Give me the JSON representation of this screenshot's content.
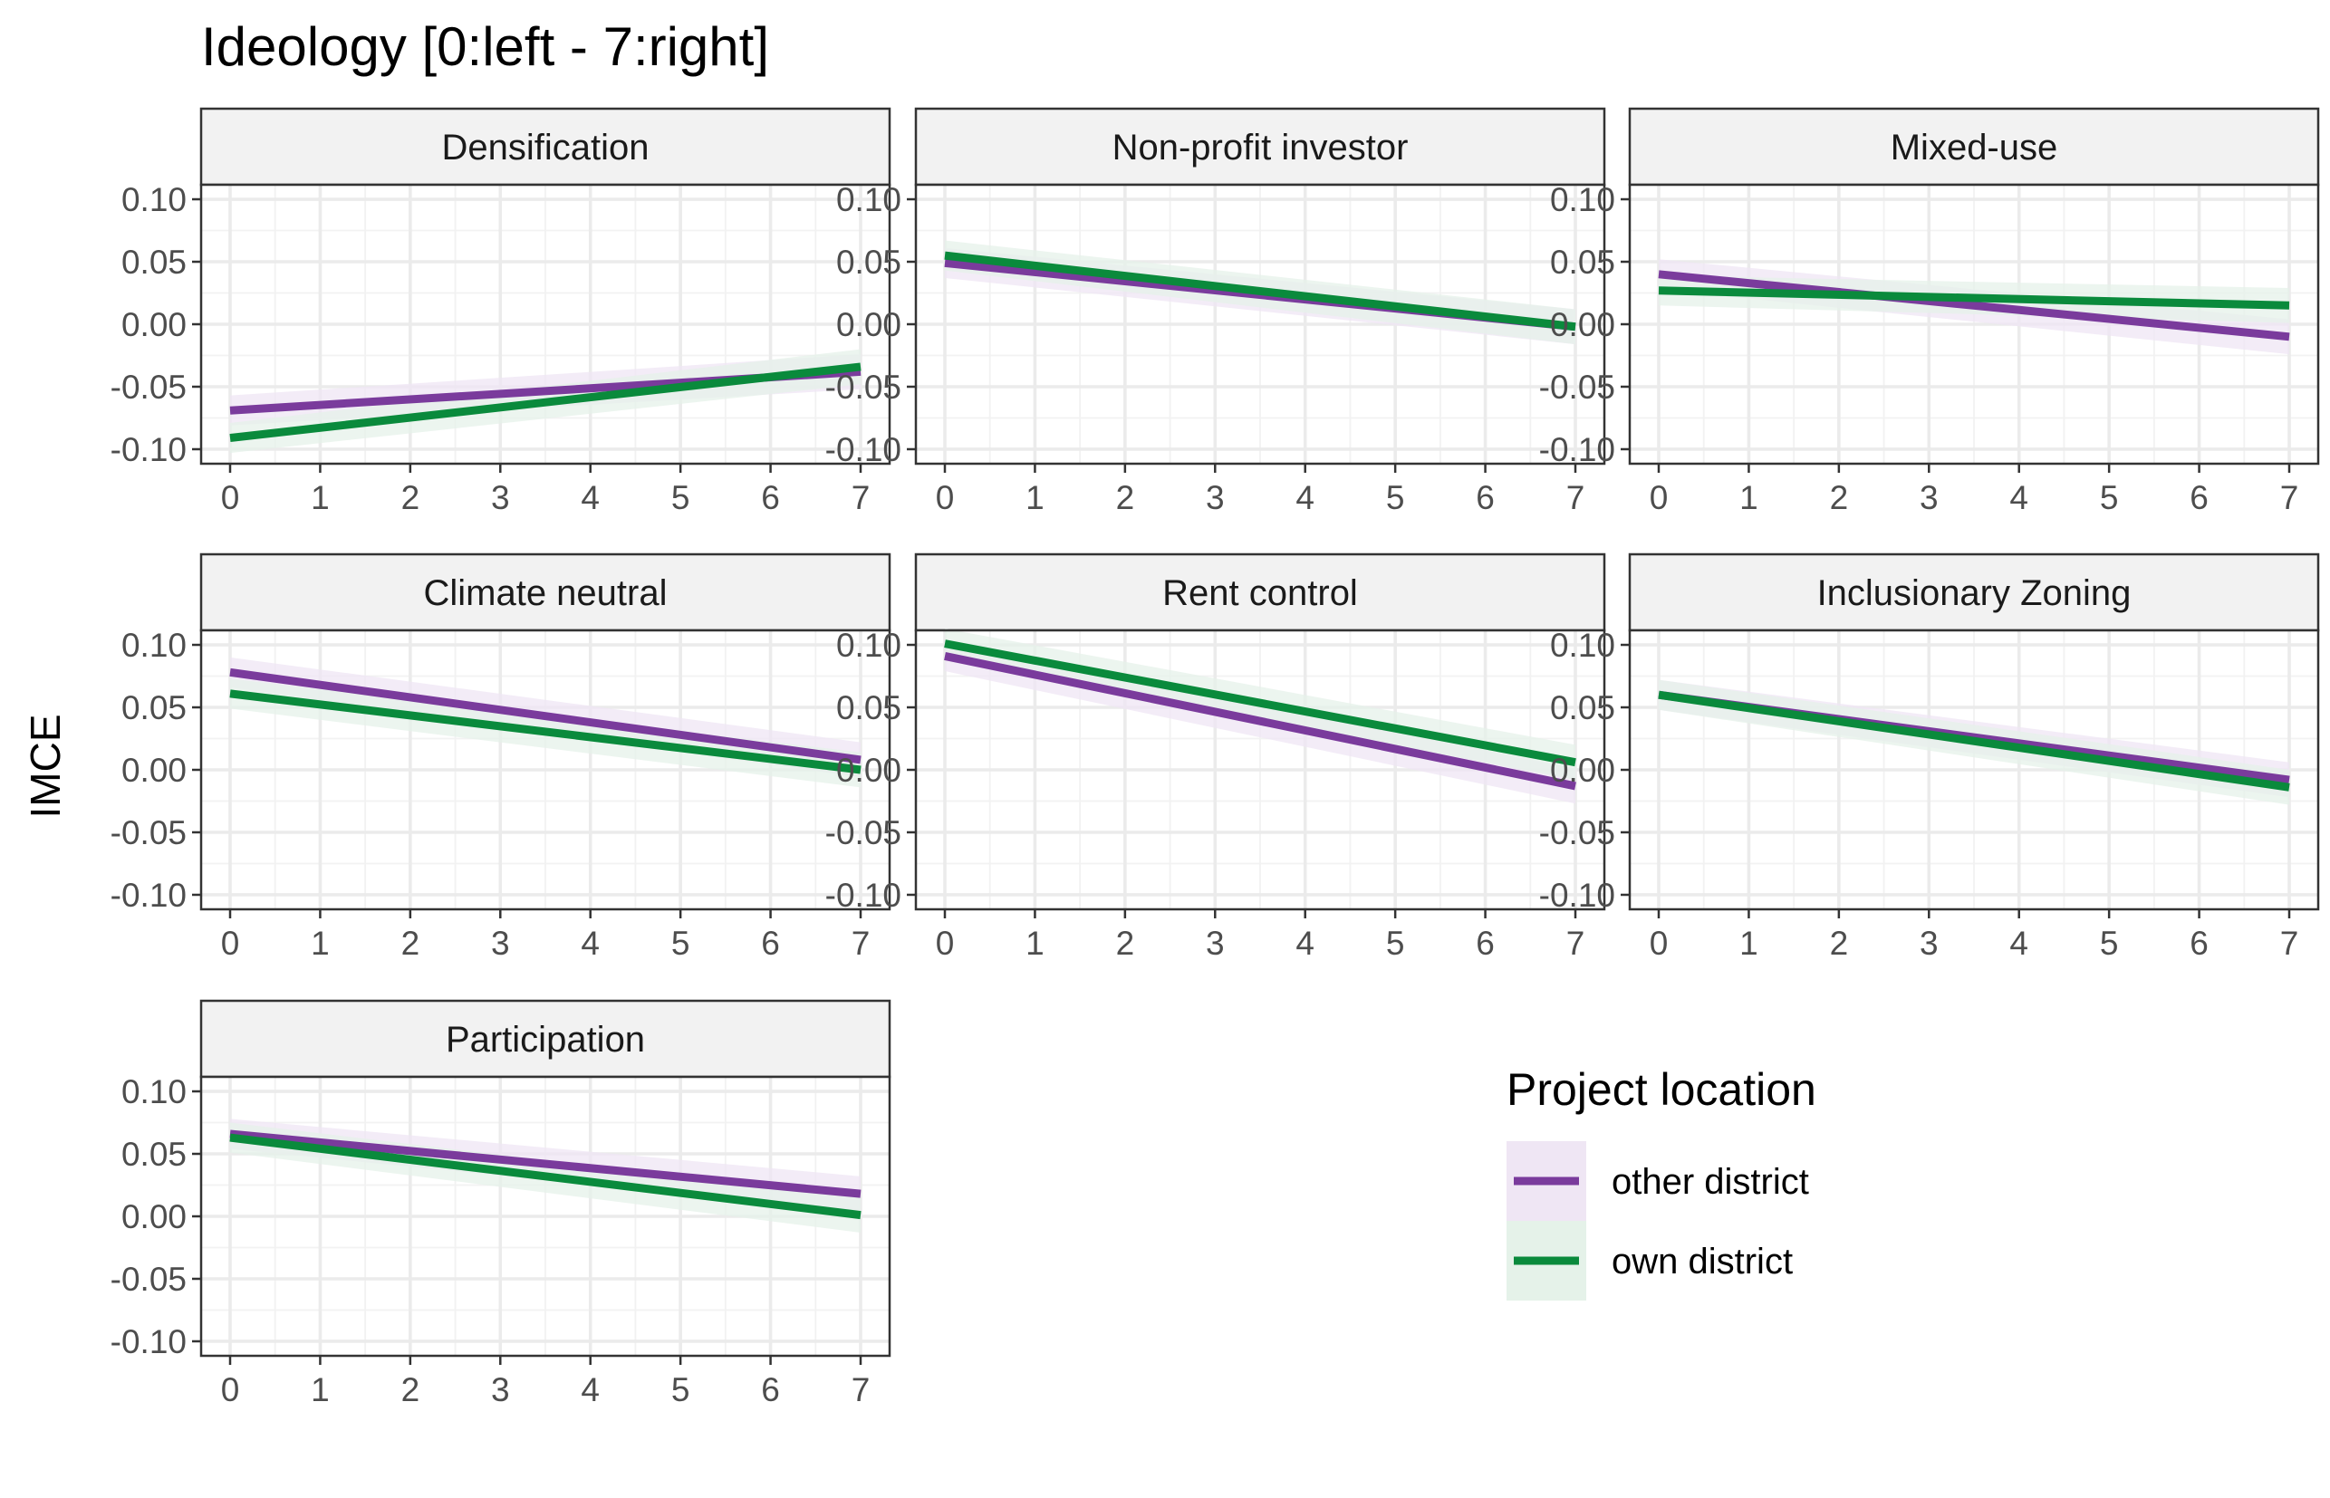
{
  "chart_data": {
    "type": "line",
    "title": "Ideology [0:left - 7:right]",
    "ylabel": "IMCE",
    "xlim": [
      0,
      7
    ],
    "ylim": [
      -0.1,
      0.1
    ],
    "x_ticks": [
      0,
      1,
      2,
      3,
      4,
      5,
      6,
      7
    ],
    "y_ticks": [
      0.1,
      0.05,
      0.0,
      -0.05,
      -0.1
    ],
    "y_tick_labels": [
      "0.10",
      "0.05",
      "0.00",
      "-0.05",
      "-0.10"
    ],
    "grid": true,
    "legend": {
      "title": "Project location",
      "position": "right",
      "entries": [
        {
          "name": "other district",
          "color": "#7a3b9c",
          "fill": "#efe6f4"
        },
        {
          "name": "own district",
          "color": "#0a8a3c",
          "fill": "#e5f2e9"
        }
      ]
    },
    "panels": [
      {
        "title": "Densification",
        "series": [
          {
            "name": "other district",
            "x": [
              0,
              7
            ],
            "y": [
              -0.069,
              -0.038
            ],
            "ci_lower": [
              -0.081,
              -0.052
            ],
            "ci_upper": [
              -0.057,
              -0.024
            ]
          },
          {
            "name": "own district",
            "x": [
              0,
              7
            ],
            "y": [
              -0.091,
              -0.034
            ],
            "ci_lower": [
              -0.103,
              -0.048
            ],
            "ci_upper": [
              -0.079,
              -0.02
            ]
          }
        ]
      },
      {
        "title": "Non-profit investor",
        "series": [
          {
            "name": "other district",
            "x": [
              0,
              7
            ],
            "y": [
              0.049,
              -0.002
            ],
            "ci_lower": [
              0.037,
              -0.016
            ],
            "ci_upper": [
              0.061,
              0.012
            ]
          },
          {
            "name": "own district",
            "x": [
              0,
              7
            ],
            "y": [
              0.055,
              -0.002
            ],
            "ci_lower": [
              0.043,
              -0.016
            ],
            "ci_upper": [
              0.067,
              0.012
            ]
          }
        ]
      },
      {
        "title": "Mixed-use",
        "series": [
          {
            "name": "other district",
            "x": [
              0,
              7
            ],
            "y": [
              0.04,
              -0.01
            ],
            "ci_lower": [
              0.028,
              -0.024
            ],
            "ci_upper": [
              0.052,
              0.004
            ]
          },
          {
            "name": "own district",
            "x": [
              0,
              7
            ],
            "y": [
              0.027,
              0.015
            ],
            "ci_lower": [
              0.015,
              0.001
            ],
            "ci_upper": [
              0.039,
              0.029
            ]
          }
        ]
      },
      {
        "title": "Climate neutral",
        "series": [
          {
            "name": "other district",
            "x": [
              0,
              7
            ],
            "y": [
              0.078,
              0.008
            ],
            "ci_lower": [
              0.066,
              -0.006
            ],
            "ci_upper": [
              0.09,
              0.022
            ]
          },
          {
            "name": "own district",
            "x": [
              0,
              7
            ],
            "y": [
              0.061,
              0.0
            ],
            "ci_lower": [
              0.049,
              -0.014
            ],
            "ci_upper": [
              0.073,
              0.014
            ]
          }
        ]
      },
      {
        "title": "Rent control",
        "series": [
          {
            "name": "other district",
            "x": [
              0,
              7
            ],
            "y": [
              0.091,
              -0.013
            ],
            "ci_lower": [
              0.079,
              -0.027
            ],
            "ci_upper": [
              0.103,
              0.001
            ]
          },
          {
            "name": "own district",
            "x": [
              0,
              7
            ],
            "y": [
              0.101,
              0.006
            ],
            "ci_lower": [
              0.089,
              -0.008
            ],
            "ci_upper": [
              0.113,
              0.02
            ]
          }
        ]
      },
      {
        "title": "Inclusionary Zoning",
        "series": [
          {
            "name": "other district",
            "x": [
              0,
              7
            ],
            "y": [
              0.06,
              -0.008
            ],
            "ci_lower": [
              0.048,
              -0.022
            ],
            "ci_upper": [
              0.072,
              0.006
            ]
          },
          {
            "name": "own district",
            "x": [
              0,
              7
            ],
            "y": [
              0.06,
              -0.014
            ],
            "ci_lower": [
              0.048,
              -0.028
            ],
            "ci_upper": [
              0.072,
              0.0
            ]
          }
        ]
      },
      {
        "title": "Participation",
        "series": [
          {
            "name": "other district",
            "x": [
              0,
              7
            ],
            "y": [
              0.066,
              0.018
            ],
            "ci_lower": [
              0.054,
              0.004
            ],
            "ci_upper": [
              0.078,
              0.032
            ]
          },
          {
            "name": "own district",
            "x": [
              0,
              7
            ],
            "y": [
              0.063,
              0.001
            ],
            "ci_lower": [
              0.051,
              -0.013
            ],
            "ci_upper": [
              0.075,
              0.015
            ]
          }
        ]
      }
    ]
  }
}
